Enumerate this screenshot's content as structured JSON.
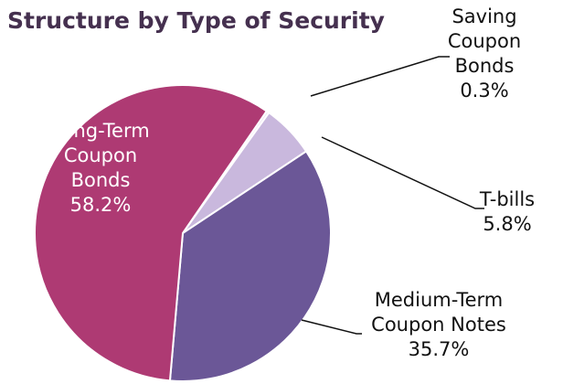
{
  "chart_data": {
    "type": "pie",
    "title": "Structure by Type of Security",
    "categories": [
      "Saving Coupon Bonds",
      "T-bills",
      "Medium-Term Coupon Notes",
      "Long-Term Coupon Bonds"
    ],
    "values": [
      0.3,
      5.8,
      35.7,
      58.2
    ],
    "value_labels": [
      "0.3%",
      "5.8%",
      "35.7%",
      "58.2%"
    ],
    "colors": [
      "#ece4f2",
      "#c9b8dd",
      "#6b5797",
      "#ae3a73"
    ]
  }
}
